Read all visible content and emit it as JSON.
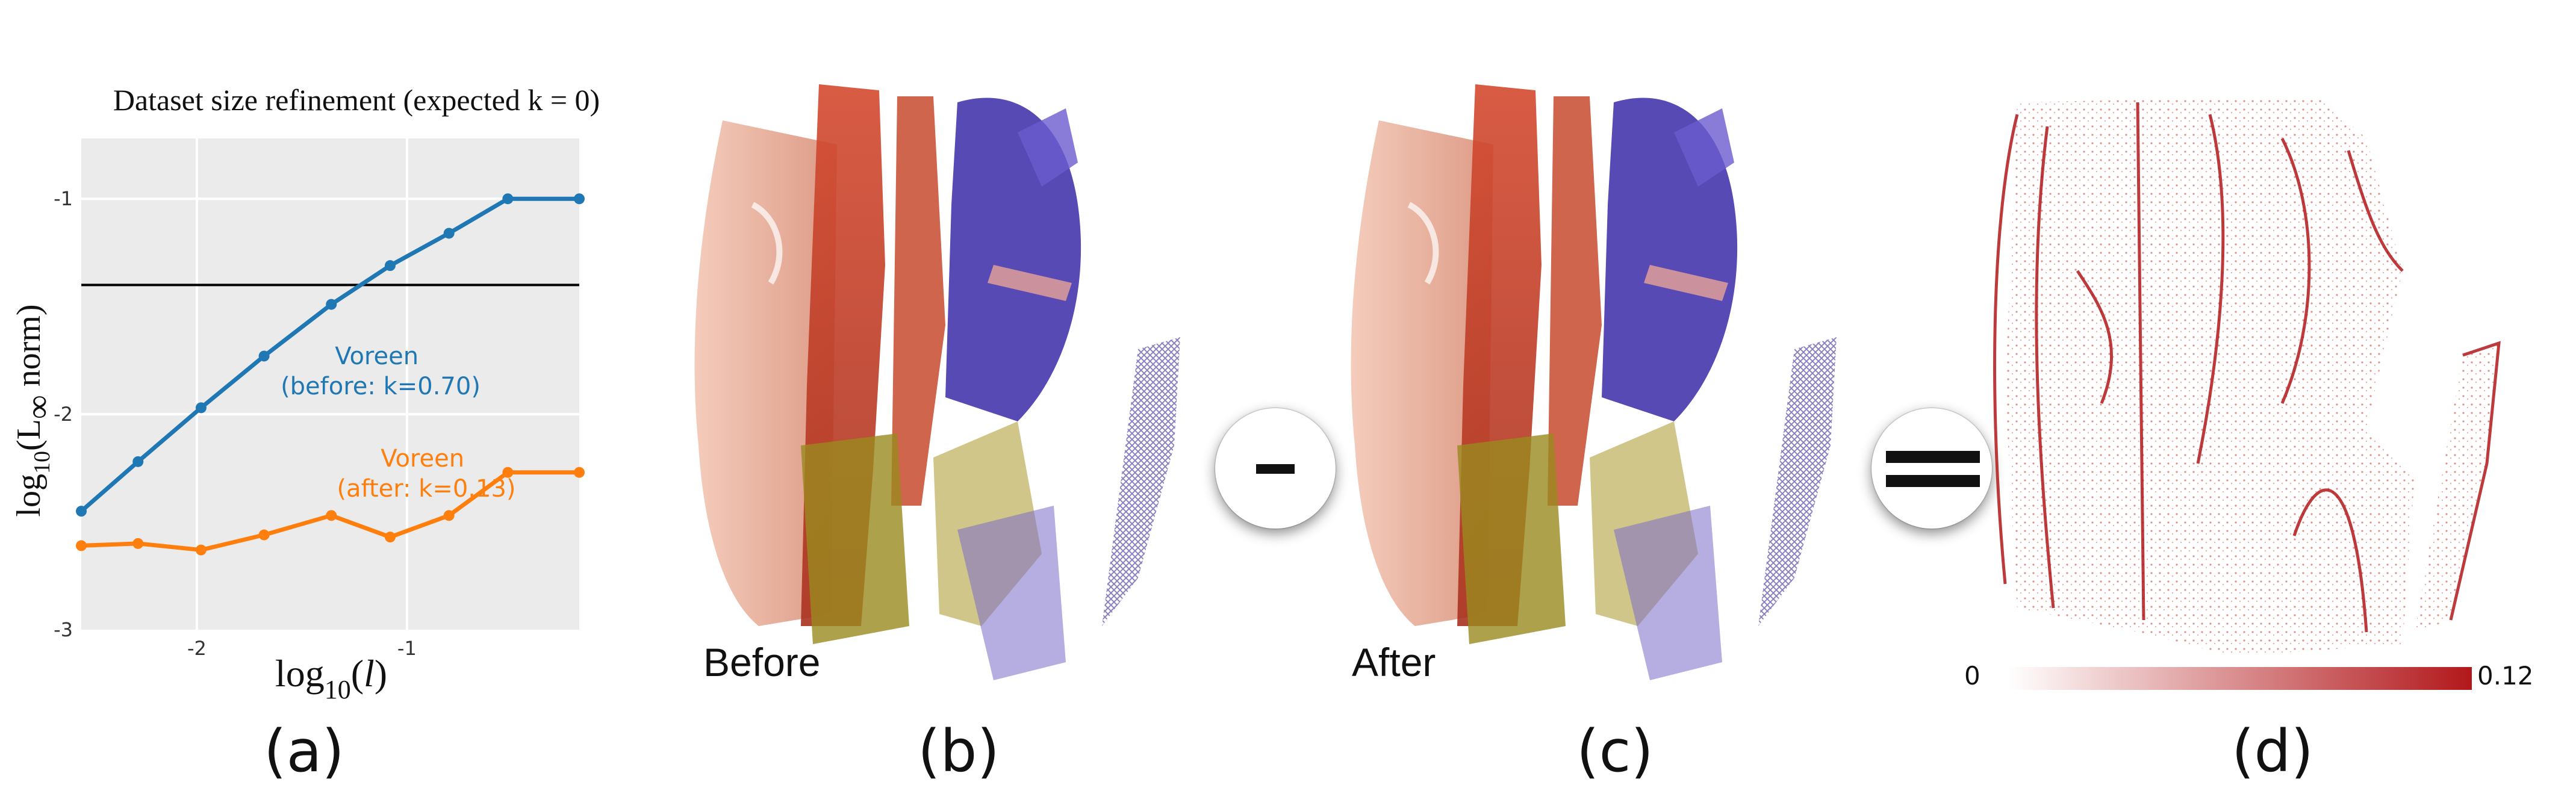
{
  "labels": {
    "a": "(a)",
    "b": "(b)",
    "c": "(c)",
    "d": "(d)"
  },
  "renders": {
    "before_caption": "Before",
    "after_caption": "After"
  },
  "operators": {
    "minus": "-",
    "equals": "="
  },
  "colorbar": {
    "min_label": "0",
    "max_label": "0.12",
    "color_low": "#ffffff",
    "color_high": "#b2181b"
  },
  "chart_data": {
    "type": "line",
    "title": "Dataset size refinement (expected k = 0)",
    "xlabel": "log10(l)",
    "xlabel_parts": {
      "base": "log",
      "sub": "10",
      "arg": "l"
    },
    "ylabel": "log10(L∞ norm)",
    "ylabel_parts": {
      "base": "log",
      "sub": "10",
      "open": "(L",
      "inf": "∞",
      "rest": " norm)"
    },
    "xlim": [
      -2.55,
      -0.18
    ],
    "ylim": [
      -3.0,
      -0.72
    ],
    "xticks": [
      -2,
      -1
    ],
    "xtick_labels": [
      "-2",
      "-1"
    ],
    "yticks": [
      -3,
      -2,
      -1
    ],
    "ytick_labels": [
      "-3",
      "-2",
      "-1"
    ],
    "grid": true,
    "reference_line": {
      "y": -1.4,
      "color": "#000000"
    },
    "series": [
      {
        "name": "Voreen",
        "annotation_line1": "Voreen",
        "annotation_line2": "(before: k=0.70)",
        "color": "#1f77b4",
        "x": [
          -2.55,
          -2.28,
          -1.98,
          -1.68,
          -1.36,
          -1.08,
          -0.8,
          -0.52,
          -0.18
        ],
        "y": [
          -2.45,
          -2.22,
          -1.97,
          -1.73,
          -1.49,
          -1.31,
          -1.16,
          -1.0,
          -1.0
        ]
      },
      {
        "name": "Voreen",
        "annotation_line1": "Voreen",
        "annotation_line2": "(after: k=0.13)",
        "color": "#ff7f0e",
        "x": [
          -2.55,
          -2.28,
          -1.98,
          -1.68,
          -1.36,
          -1.08,
          -0.8,
          -0.52,
          -0.18
        ],
        "y": [
          -2.61,
          -2.6,
          -2.63,
          -2.56,
          -2.47,
          -2.57,
          -2.47,
          -2.27,
          -2.27
        ]
      }
    ]
  }
}
